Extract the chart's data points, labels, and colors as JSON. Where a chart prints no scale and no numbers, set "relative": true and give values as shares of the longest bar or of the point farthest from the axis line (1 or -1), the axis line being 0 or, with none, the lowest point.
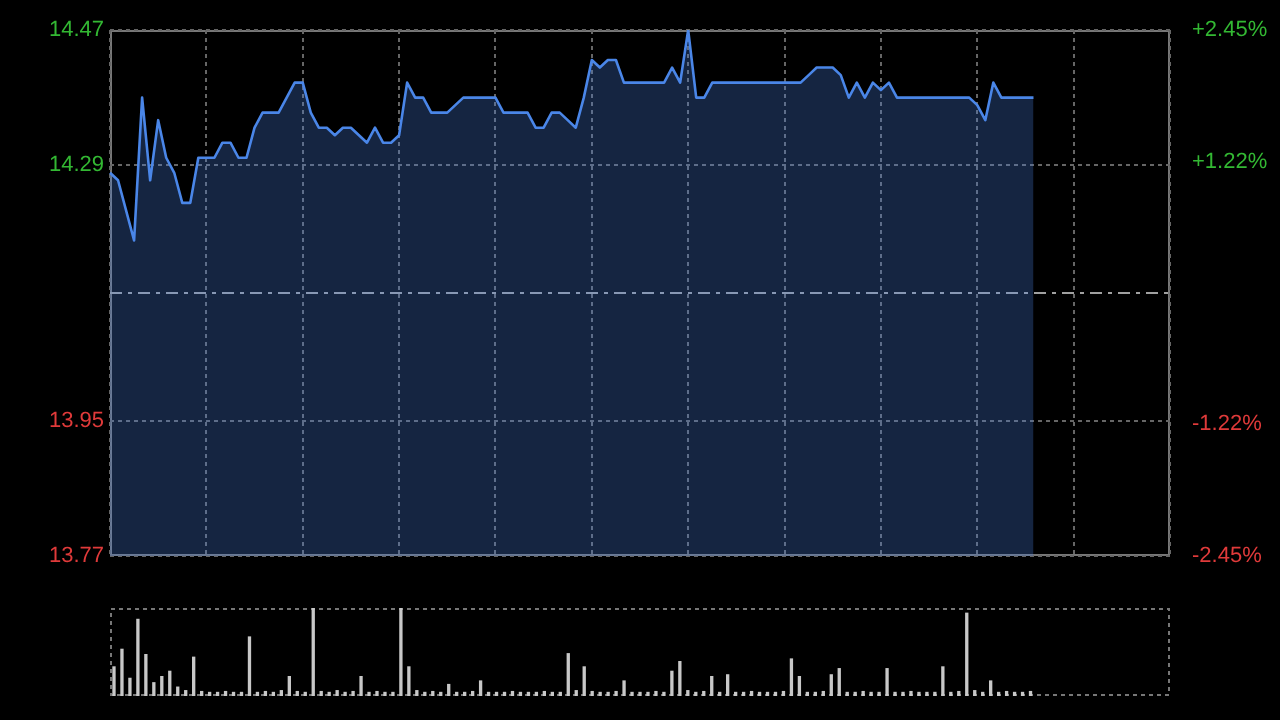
{
  "chart_data": [
    {
      "type": "area",
      "categories": [
        null,
        null,
        null,
        null,
        null,
        null,
        null,
        null,
        null,
        null,
        null,
        null,
        null,
        null,
        null,
        null,
        null,
        null,
        null,
        null,
        null,
        null,
        null,
        null,
        null,
        null,
        null,
        null,
        null,
        null,
        null,
        null,
        null,
        null,
        null,
        null,
        null,
        null,
        null,
        null,
        null,
        null,
        null,
        null,
        null,
        null,
        null,
        null,
        null,
        null,
        null,
        null,
        null,
        null,
        null,
        null,
        null,
        null,
        null,
        null,
        null,
        null,
        null,
        null,
        null,
        null,
        null,
        null,
        null,
        null,
        null,
        null,
        null,
        null,
        null,
        null,
        null,
        null,
        null,
        null,
        null,
        null,
        null,
        null,
        null,
        null,
        null,
        null,
        null,
        null,
        null,
        null,
        null,
        null,
        null,
        null,
        null,
        null,
        null,
        null,
        null,
        null,
        null,
        null,
        null,
        null,
        null,
        null,
        null,
        null,
        null,
        null,
        null,
        null,
        null,
        null,
        null,
        null,
        null,
        null,
        null,
        null,
        null,
        null,
        null,
        null,
        null,
        null,
        null,
        null,
        null,
        null,
        null
      ],
      "series": [
        {
          "color": "#4a86e8",
          "values": [
            14.28,
            14.27,
            14.23,
            14.19,
            14.38,
            14.27,
            14.35,
            14.3,
            14.28,
            14.24,
            14.24,
            14.3,
            14.3,
            14.3,
            14.32,
            14.32,
            14.3,
            14.3,
            14.34,
            14.36,
            14.36,
            14.36,
            14.38,
            14.4,
            14.4,
            14.36,
            14.34,
            14.34,
            14.33,
            14.34,
            14.34,
            14.33,
            14.32,
            14.34,
            14.32,
            14.32,
            14.33,
            14.4,
            14.38,
            14.38,
            14.36,
            14.36,
            14.36,
            14.37,
            14.38,
            14.38,
            14.38,
            14.38,
            14.38,
            14.36,
            14.36,
            14.36,
            14.36,
            14.34,
            14.34,
            14.36,
            14.36,
            14.35,
            14.34,
            14.38,
            14.43,
            14.42,
            14.43,
            14.43,
            14.4,
            14.4,
            14.4,
            14.4,
            14.4,
            14.4,
            14.42,
            14.4,
            14.47,
            14.38,
            14.38,
            14.4,
            14.4,
            14.4,
            14.4,
            14.4,
            14.4,
            14.4,
            14.4,
            14.4,
            14.4,
            14.4,
            14.4,
            14.41,
            14.42,
            14.42,
            14.42,
            14.41,
            14.38,
            14.4,
            14.38,
            14.4,
            14.39,
            14.4,
            14.38,
            14.38,
            14.38,
            14.38,
            14.38,
            14.38,
            14.38,
            14.38,
            14.38,
            14.38,
            14.37,
            14.35,
            14.4,
            14.38,
            14.38,
            14.38,
            14.38,
            14.38,
            null,
            null,
            null,
            null,
            null,
            null,
            null,
            null,
            null,
            null,
            null,
            null,
            null,
            null,
            null,
            null,
            null
          ]
        }
      ],
      "ylim": [
        13.77,
        14.47
      ],
      "yticks": [
        14.47,
        14.29,
        13.95,
        13.77
      ],
      "y2lim": [
        -2.45,
        2.45
      ],
      "y2ticks": [
        {
          "value": 2.45,
          "label": "+2.45%"
        },
        {
          "value": 1.22,
          "label": "+1.22%"
        },
        {
          "value": -1.22,
          "label": "-1.22%"
        },
        {
          "value": -2.45,
          "label": "-2.45%"
        }
      ],
      "ref_lines": [
        {
          "axis": "y",
          "value": 14.12,
          "color": "#a0a0a0",
          "line_style": "dashed"
        }
      ],
      "grid": true
    },
    {
      "type": "bar",
      "relative": true,
      "color": "#c8c8c8",
      "categories": [
        null,
        null,
        null,
        null,
        null,
        null,
        null,
        null,
        null,
        null,
        null,
        null,
        null,
        null,
        null,
        null,
        null,
        null,
        null,
        null,
        null,
        null,
        null,
        null,
        null,
        null,
        null,
        null,
        null,
        null,
        null,
        null,
        null,
        null,
        null,
        null,
        null,
        null,
        null,
        null,
        null,
        null,
        null,
        null,
        null,
        null,
        null,
        null,
        null,
        null,
        null,
        null,
        null,
        null,
        null,
        null,
        null,
        null,
        null,
        null,
        null,
        null,
        null,
        null,
        null,
        null,
        null,
        null,
        null,
        null,
        null,
        null,
        null,
        null,
        null,
        null,
        null,
        null,
        null,
        null,
        null,
        null,
        null,
        null,
        null,
        null,
        null,
        null,
        null,
        null,
        null,
        null,
        null,
        null,
        null,
        null,
        null,
        null,
        null,
        null,
        null,
        null,
        null,
        null,
        null,
        null,
        null,
        null,
        null,
        null,
        null,
        null,
        null,
        null,
        null,
        null,
        null,
        null,
        null,
        null,
        null,
        null,
        null,
        null,
        null,
        null,
        null,
        null,
        null,
        null,
        null,
        null,
        null
      ],
      "values": [
        0.33,
        0.53,
        0.2,
        0.87,
        0.47,
        0.15,
        0.22,
        0.28,
        0.1,
        0.06,
        0.44,
        0.05,
        0.04,
        0.04,
        0.05,
        0.04,
        0.04,
        0.67,
        0.04,
        0.05,
        0.04,
        0.06,
        0.22,
        0.05,
        0.04,
        1.0,
        0.05,
        0.04,
        0.06,
        0.04,
        0.05,
        0.22,
        0.04,
        0.05,
        0.04,
        0.04,
        1.0,
        0.33,
        0.06,
        0.04,
        0.05,
        0.04,
        0.13,
        0.04,
        0.04,
        0.05,
        0.17,
        0.04,
        0.04,
        0.04,
        0.05,
        0.04,
        0.04,
        0.04,
        0.05,
        0.04,
        0.04,
        0.48,
        0.06,
        0.33,
        0.05,
        0.04,
        0.04,
        0.05,
        0.17,
        0.04,
        0.04,
        0.04,
        0.05,
        0.04,
        0.28,
        0.39,
        0.06,
        0.04,
        0.05,
        0.22,
        0.04,
        0.24,
        0.04,
        0.04,
        0.05,
        0.04,
        0.04,
        0.04,
        0.05,
        0.42,
        0.22,
        0.04,
        0.04,
        0.05,
        0.24,
        0.31,
        0.04,
        0.04,
        0.05,
        0.04,
        0.04,
        0.31,
        0.04,
        0.04,
        0.05,
        0.04,
        0.04,
        0.04,
        0.33,
        0.04,
        0.05,
        0.94,
        0.06,
        0.04,
        0.17,
        0.04,
        0.05,
        0.04,
        0.04,
        0.05,
        null,
        null,
        null,
        null,
        null,
        null,
        null,
        null,
        null,
        null,
        null,
        null,
        null,
        null,
        null,
        null,
        null
      ]
    }
  ]
}
